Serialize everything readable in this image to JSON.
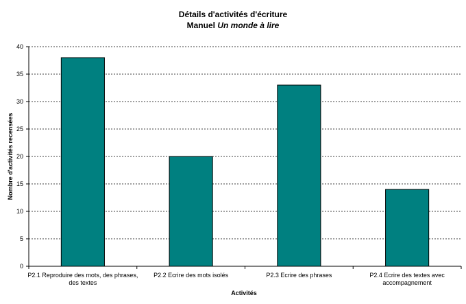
{
  "chart_data": {
    "type": "bar",
    "title": "Détails d'activités d'écriture",
    "subtitle_prefix": "Manuel ",
    "subtitle_italic": "Un monde à lire",
    "xlabel": "Activités",
    "ylabel": "Nombre d'activités recensées",
    "ylim": [
      0,
      40
    ],
    "yticks": [
      0,
      5,
      10,
      15,
      20,
      25,
      30,
      35,
      40
    ],
    "grid": true,
    "categories": [
      [
        "P2.1 Reproduire des mots, des phrases,",
        "des textes"
      ],
      [
        "P2.2 Ecrire des mots isolés"
      ],
      [
        "P2.3 Ecrire des phrases"
      ],
      [
        "P2.4 Ecrire des textes avec",
        "accompagnement"
      ]
    ],
    "values": [
      38,
      20,
      33,
      14
    ],
    "bar_color": "#008080",
    "bar_edge_color": "#000000"
  }
}
